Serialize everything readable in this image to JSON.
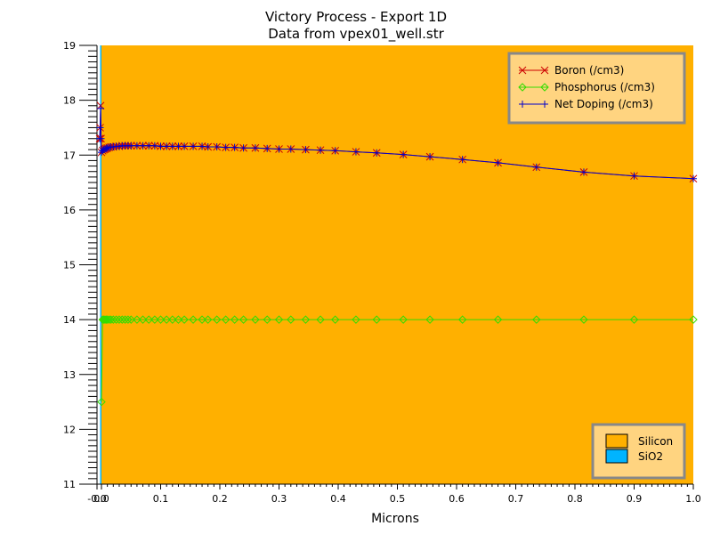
{
  "chart_data": {
    "type": "line",
    "title": "Victory Process - Export 1D",
    "subtitle": "Data from vpex01_well.str",
    "xlabel": "Microns",
    "ylabel": "",
    "xlim": [
      -0.01,
      1.0
    ],
    "ylim": [
      11,
      19
    ],
    "grid": false,
    "legend_position": "top-right",
    "x_ticks": [
      "-0.0",
      "0.0",
      "0.1",
      "0.2",
      "0.3",
      "0.4",
      "0.5",
      "0.6",
      "0.7",
      "0.8",
      "0.9",
      "1.0"
    ],
    "x_tick_values": [
      -0.01,
      0.0,
      0.1,
      0.2,
      0.3,
      0.4,
      0.5,
      0.6,
      0.7,
      0.8,
      0.9,
      1.0
    ],
    "y_ticks": [
      "11",
      "12",
      "13",
      "14",
      "15",
      "16",
      "17",
      "18",
      "19"
    ],
    "y_tick_values": [
      11,
      12,
      13,
      14,
      15,
      16,
      17,
      18,
      19
    ],
    "regions": [
      {
        "name": "SiO2",
        "color": "#00b4ff",
        "x": [
          -0.003,
          0.0
        ]
      },
      {
        "name": "Silicon",
        "color": "#ffb000",
        "x": [
          0.0,
          1.0
        ]
      }
    ],
    "series": [
      {
        "name": "Boron (/cm3)",
        "color": "#cc0000",
        "marker": "x",
        "x": [
          -0.004,
          -0.003,
          -0.002,
          -0.001,
          0.0,
          0.002,
          0.004,
          0.006,
          0.008,
          0.01,
          0.013,
          0.016,
          0.02,
          0.025,
          0.03,
          0.035,
          0.04,
          0.045,
          0.05,
          0.06,
          0.07,
          0.08,
          0.09,
          0.1,
          0.11,
          0.12,
          0.13,
          0.14,
          0.155,
          0.17,
          0.18,
          0.195,
          0.21,
          0.225,
          0.24,
          0.26,
          0.28,
          0.3,
          0.32,
          0.345,
          0.37,
          0.395,
          0.43,
          0.465,
          0.51,
          0.555,
          0.61,
          0.67,
          0.735,
          0.815,
          0.9,
          1.0
        ],
        "values": [
          17.3,
          17.5,
          17.9,
          17.3,
          17.05,
          17.08,
          17.1,
          17.11,
          17.12,
          17.13,
          17.14,
          17.15,
          17.15,
          17.16,
          17.16,
          17.17,
          17.17,
          17.17,
          17.17,
          17.17,
          17.17,
          17.17,
          17.17,
          17.16,
          17.16,
          17.16,
          17.16,
          17.16,
          17.16,
          17.16,
          17.15,
          17.15,
          17.14,
          17.14,
          17.13,
          17.13,
          17.12,
          17.11,
          17.11,
          17.1,
          17.09,
          17.08,
          17.06,
          17.04,
          17.01,
          16.97,
          16.92,
          16.86,
          16.78,
          16.69,
          16.62,
          16.57
        ]
      },
      {
        "name": "Phosphorus (/cm3)",
        "color": "#33dd00",
        "marker": "diamond",
        "x": [
          0.0,
          0.002,
          0.004,
          0.006,
          0.008,
          0.01,
          0.013,
          0.016,
          0.02,
          0.025,
          0.03,
          0.035,
          0.04,
          0.045,
          0.05,
          0.06,
          0.07,
          0.08,
          0.09,
          0.1,
          0.11,
          0.12,
          0.13,
          0.14,
          0.155,
          0.17,
          0.18,
          0.195,
          0.21,
          0.225,
          0.24,
          0.26,
          0.28,
          0.3,
          0.32,
          0.345,
          0.37,
          0.395,
          0.43,
          0.465,
          0.51,
          0.555,
          0.61,
          0.67,
          0.735,
          0.815,
          0.9,
          1.0
        ],
        "values": [
          12.5,
          14.0,
          14.0,
          14.0,
          14.0,
          14.0,
          14.0,
          14.0,
          14.0,
          14.0,
          14.0,
          14.0,
          14.0,
          14.0,
          14.0,
          14.0,
          14.0,
          14.0,
          14.0,
          14.0,
          14.0,
          14.0,
          14.0,
          14.0,
          14.0,
          14.0,
          14.0,
          14.0,
          14.0,
          14.0,
          14.0,
          14.0,
          14.0,
          14.0,
          14.0,
          14.0,
          14.0,
          14.0,
          14.0,
          14.0,
          14.0,
          14.0,
          14.0,
          14.0,
          14.0,
          14.0,
          14.0,
          14.0
        ]
      },
      {
        "name": "Net Doping (/cm3)",
        "color": "#0000cc",
        "marker": "plus",
        "x": [
          -0.004,
          -0.003,
          -0.002,
          -0.001,
          0.0,
          0.002,
          0.004,
          0.006,
          0.008,
          0.01,
          0.013,
          0.016,
          0.02,
          0.025,
          0.03,
          0.035,
          0.04,
          0.045,
          0.05,
          0.06,
          0.07,
          0.08,
          0.09,
          0.1,
          0.11,
          0.12,
          0.13,
          0.14,
          0.155,
          0.17,
          0.18,
          0.195,
          0.21,
          0.225,
          0.24,
          0.26,
          0.28,
          0.3,
          0.32,
          0.345,
          0.37,
          0.395,
          0.43,
          0.465,
          0.51,
          0.555,
          0.61,
          0.67,
          0.735,
          0.815,
          0.9,
          1.0
        ],
        "values": [
          17.3,
          17.5,
          17.85,
          17.3,
          17.05,
          17.08,
          17.1,
          17.11,
          17.12,
          17.13,
          17.14,
          17.15,
          17.15,
          17.16,
          17.16,
          17.17,
          17.17,
          17.17,
          17.17,
          17.17,
          17.17,
          17.17,
          17.17,
          17.16,
          17.16,
          17.16,
          17.16,
          17.16,
          17.16,
          17.16,
          17.15,
          17.15,
          17.14,
          17.14,
          17.13,
          17.13,
          17.12,
          17.11,
          17.11,
          17.1,
          17.09,
          17.08,
          17.06,
          17.04,
          17.01,
          16.97,
          16.92,
          16.86,
          16.78,
          16.69,
          16.62,
          16.57
        ]
      }
    ]
  }
}
